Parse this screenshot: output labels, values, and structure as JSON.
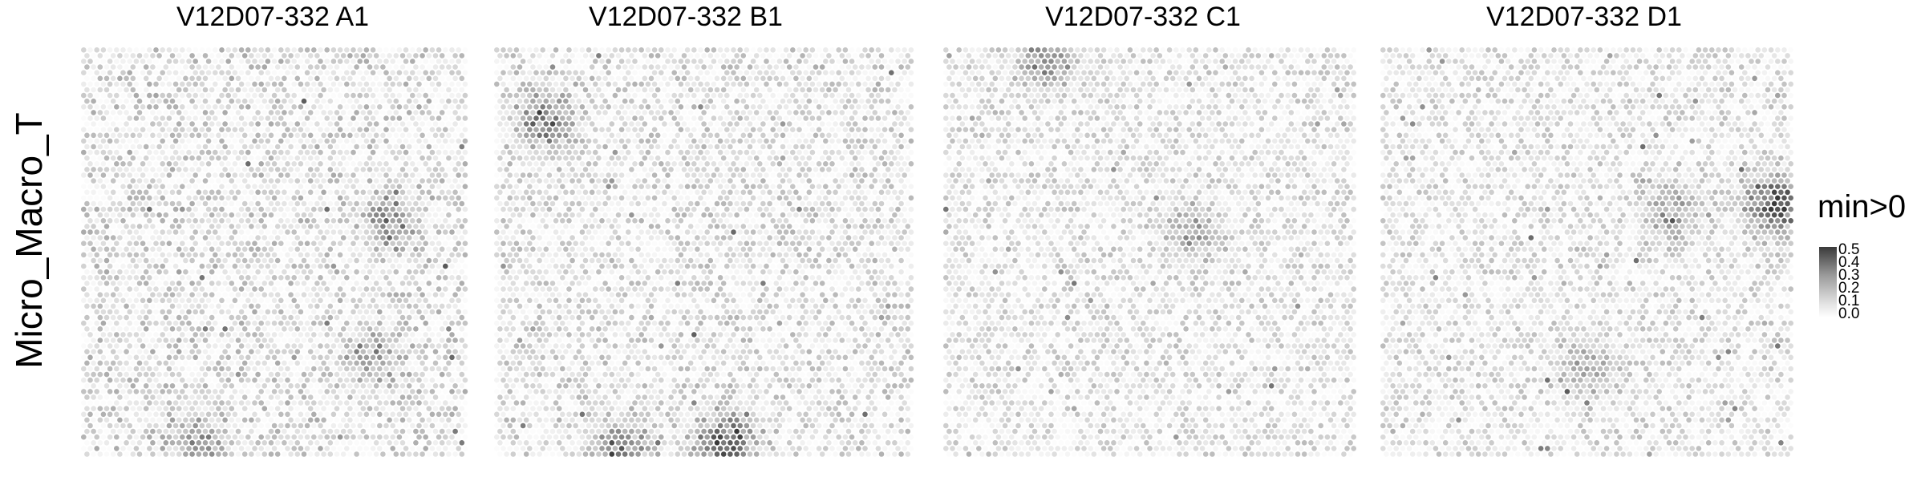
{
  "chart_data": {
    "type": "heatmap",
    "description_kind": "spatial spot plot",
    "row_label": "Micro_Macro_T",
    "legend": {
      "title": "min>0",
      "ticks": [
        "0.5",
        "0.4",
        "0.3",
        "0.2",
        "0.1",
        "0.0"
      ],
      "range": [
        0,
        0.5
      ],
      "colors": [
        "#ffffff",
        "#3a3a3a"
      ]
    },
    "panels": [
      {
        "title": "V12D07-332  A1",
        "typical": 0.09,
        "hotspots": [
          [
            0.8,
            0.42,
            0.25
          ],
          [
            0.3,
            0.95,
            0.22
          ],
          [
            0.75,
            0.75,
            0.18
          ]
        ]
      },
      {
        "title": "V12D07-332  B1",
        "typical": 0.08,
        "hotspots": [
          [
            0.55,
            0.96,
            0.45
          ],
          [
            0.3,
            0.98,
            0.32
          ],
          [
            0.12,
            0.18,
            0.3
          ]
        ]
      },
      {
        "title": "V12D07-332  C1",
        "typical": 0.07,
        "hotspots": [
          [
            0.25,
            0.03,
            0.3
          ],
          [
            0.6,
            0.45,
            0.2
          ]
        ]
      },
      {
        "title": "V12D07-332  D1",
        "typical": 0.07,
        "hotspots": [
          [
            0.95,
            0.38,
            0.55
          ],
          [
            0.7,
            0.4,
            0.2
          ],
          [
            0.5,
            0.78,
            0.2
          ]
        ]
      }
    ],
    "grid": "off",
    "legend_position": "right"
  }
}
